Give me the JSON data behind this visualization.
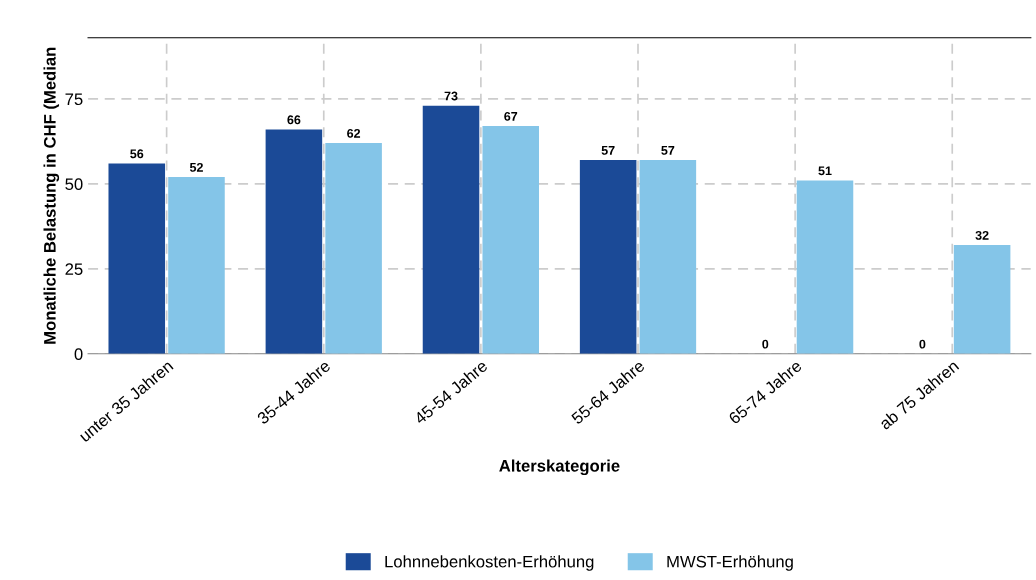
{
  "chart_data": {
    "type": "bar",
    "xlabel": "Alterskategorie",
    "ylabel": "Monatliche Belastung in CHF (Median",
    "categories": [
      "unter 35 Jahren",
      "35-44 Jahre",
      "45-54 Jahre",
      "55-64 Jahre",
      "65-74 Jahre",
      "ab 75 Jahren"
    ],
    "series": [
      {
        "name": "Lohnnebenkosten-Erhöhung",
        "color": "#1b4a97",
        "values": [
          56,
          66,
          73,
          57,
          0,
          0
        ]
      },
      {
        "name": "MWST-Erhöhung",
        "color": "#84c5e8",
        "values": [
          52,
          62,
          67,
          57,
          51,
          32
        ]
      }
    ],
    "ylim": [
      0,
      93
    ],
    "yticks": [
      0,
      25,
      50,
      75
    ],
    "grid": true,
    "data_labels": true,
    "legend": "bottom"
  }
}
